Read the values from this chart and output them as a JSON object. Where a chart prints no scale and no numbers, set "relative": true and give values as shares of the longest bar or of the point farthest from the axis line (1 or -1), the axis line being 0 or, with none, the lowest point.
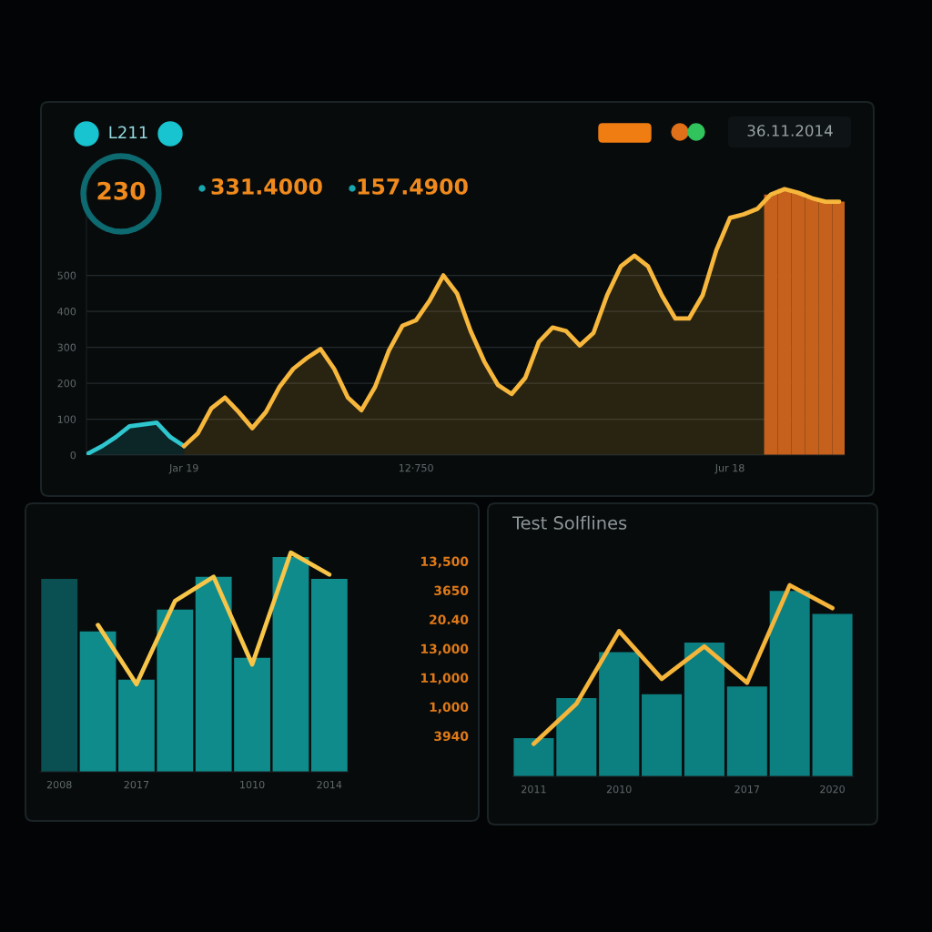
{
  "chart_data": [
    {
      "type": "other",
      "annotations": [
        "L211",
        "230",
        "331.4000",
        "157.4900",
        "36.11.2014"
      ]
    },
    {
      "type": "area",
      "categories": [
        null,
        null,
        null,
        null,
        null,
        null,
        null,
        "Jar 19",
        null,
        null,
        null,
        null,
        null,
        null,
        null,
        null,
        null,
        null,
        null,
        null,
        null,
        null,
        null,
        null,
        "12·750",
        null,
        null,
        null,
        null,
        null,
        null,
        null,
        null,
        null,
        null,
        null,
        null,
        null,
        null,
        null,
        null,
        null,
        null,
        null,
        null,
        null,
        null,
        "Jur 18",
        null,
        null,
        null,
        null,
        null,
        null,
        null,
        null
      ],
      "series": [
        {
          "type": "bar",
          "color": "#c5611c",
          "values": [
            null,
            null,
            null,
            null,
            null,
            null,
            null,
            null,
            null,
            null,
            null,
            null,
            null,
            null,
            null,
            null,
            null,
            null,
            null,
            null,
            null,
            null,
            null,
            null,
            null,
            null,
            null,
            null,
            null,
            null,
            null,
            null,
            null,
            null,
            null,
            null,
            null,
            null,
            null,
            null,
            null,
            null,
            null,
            null,
            null,
            null,
            null,
            null,
            null,
            null,
            725,
            740,
            730,
            715,
            705,
            705
          ]
        },
        {
          "color": "#2ec6cf",
          "values": [
            5,
            25,
            50,
            80,
            85,
            90,
            50,
            25,
            null,
            null,
            null,
            null,
            null,
            null,
            null,
            null,
            null,
            null,
            null,
            null,
            null,
            null,
            null,
            null,
            null,
            null,
            null,
            null,
            null,
            null,
            null,
            null,
            null,
            null,
            null,
            null,
            null,
            null,
            null,
            null,
            null,
            null,
            null,
            null,
            null,
            null,
            null,
            null,
            null,
            null,
            null,
            null,
            null,
            null,
            null,
            null
          ]
        },
        {
          "color": "#f6b73c",
          "values": [
            null,
            null,
            null,
            null,
            null,
            null,
            null,
            25,
            60,
            130,
            160,
            120,
            75,
            120,
            190,
            240,
            270,
            295,
            240,
            160,
            125,
            190,
            290,
            360,
            375,
            430,
            500,
            450,
            345,
            260,
            195,
            170,
            215,
            315,
            355,
            345,
            305,
            340,
            445,
            525,
            555,
            525,
            445,
            380,
            380,
            445,
            570,
            660,
            670,
            685,
            725,
            740,
            730,
            715,
            705,
            705
          ]
        }
      ],
      "ylim": [
        0,
        780
      ],
      "yticks": [
        0,
        100,
        200,
        300,
        400,
        500
      ],
      "grid": "y"
    },
    {
      "type": "bar",
      "relative": true,
      "categories": [
        "2008",
        null,
        "2017",
        null,
        null,
        "1010",
        null,
        "2014"
      ],
      "series": [
        {
          "colors": [
            "#0a4f51",
            "#0f8b8b",
            "#0f8b8b",
            "#0f8b8b",
            "#0f8b8b",
            "#0f8b8b",
            "#0f8b8b",
            "#0f8b8b"
          ],
          "values": [
            0.88,
            0.64,
            0.42,
            0.74,
            0.89,
            0.52,
            0.98,
            0.88
          ]
        },
        {
          "type": "line",
          "color": "#f7c548",
          "values": [
            null,
            0.67,
            0.4,
            0.78,
            0.89,
            0.49,
            1.0,
            0.9
          ]
        }
      ],
      "annotations": [
        "13,500",
        "3650",
        "20.40",
        "13,000",
        "11,000",
        "1,000",
        "3940"
      ]
    },
    {
      "type": "bar",
      "relative": true,
      "title": "Test Solflines",
      "categories": [
        "2011",
        null,
        "2010",
        null,
        null,
        "2017",
        null,
        "2020"
      ],
      "series": [
        {
          "color": "#0c7f80",
          "values": [
            0.2,
            0.41,
            0.65,
            0.43,
            0.7,
            0.47,
            0.97,
            0.85
          ]
        },
        {
          "type": "line",
          "color": "#f5b43a",
          "values": [
            0.17,
            0.38,
            0.76,
            0.51,
            0.68,
            0.49,
            1.0,
            0.88
          ]
        }
      ]
    }
  ]
}
